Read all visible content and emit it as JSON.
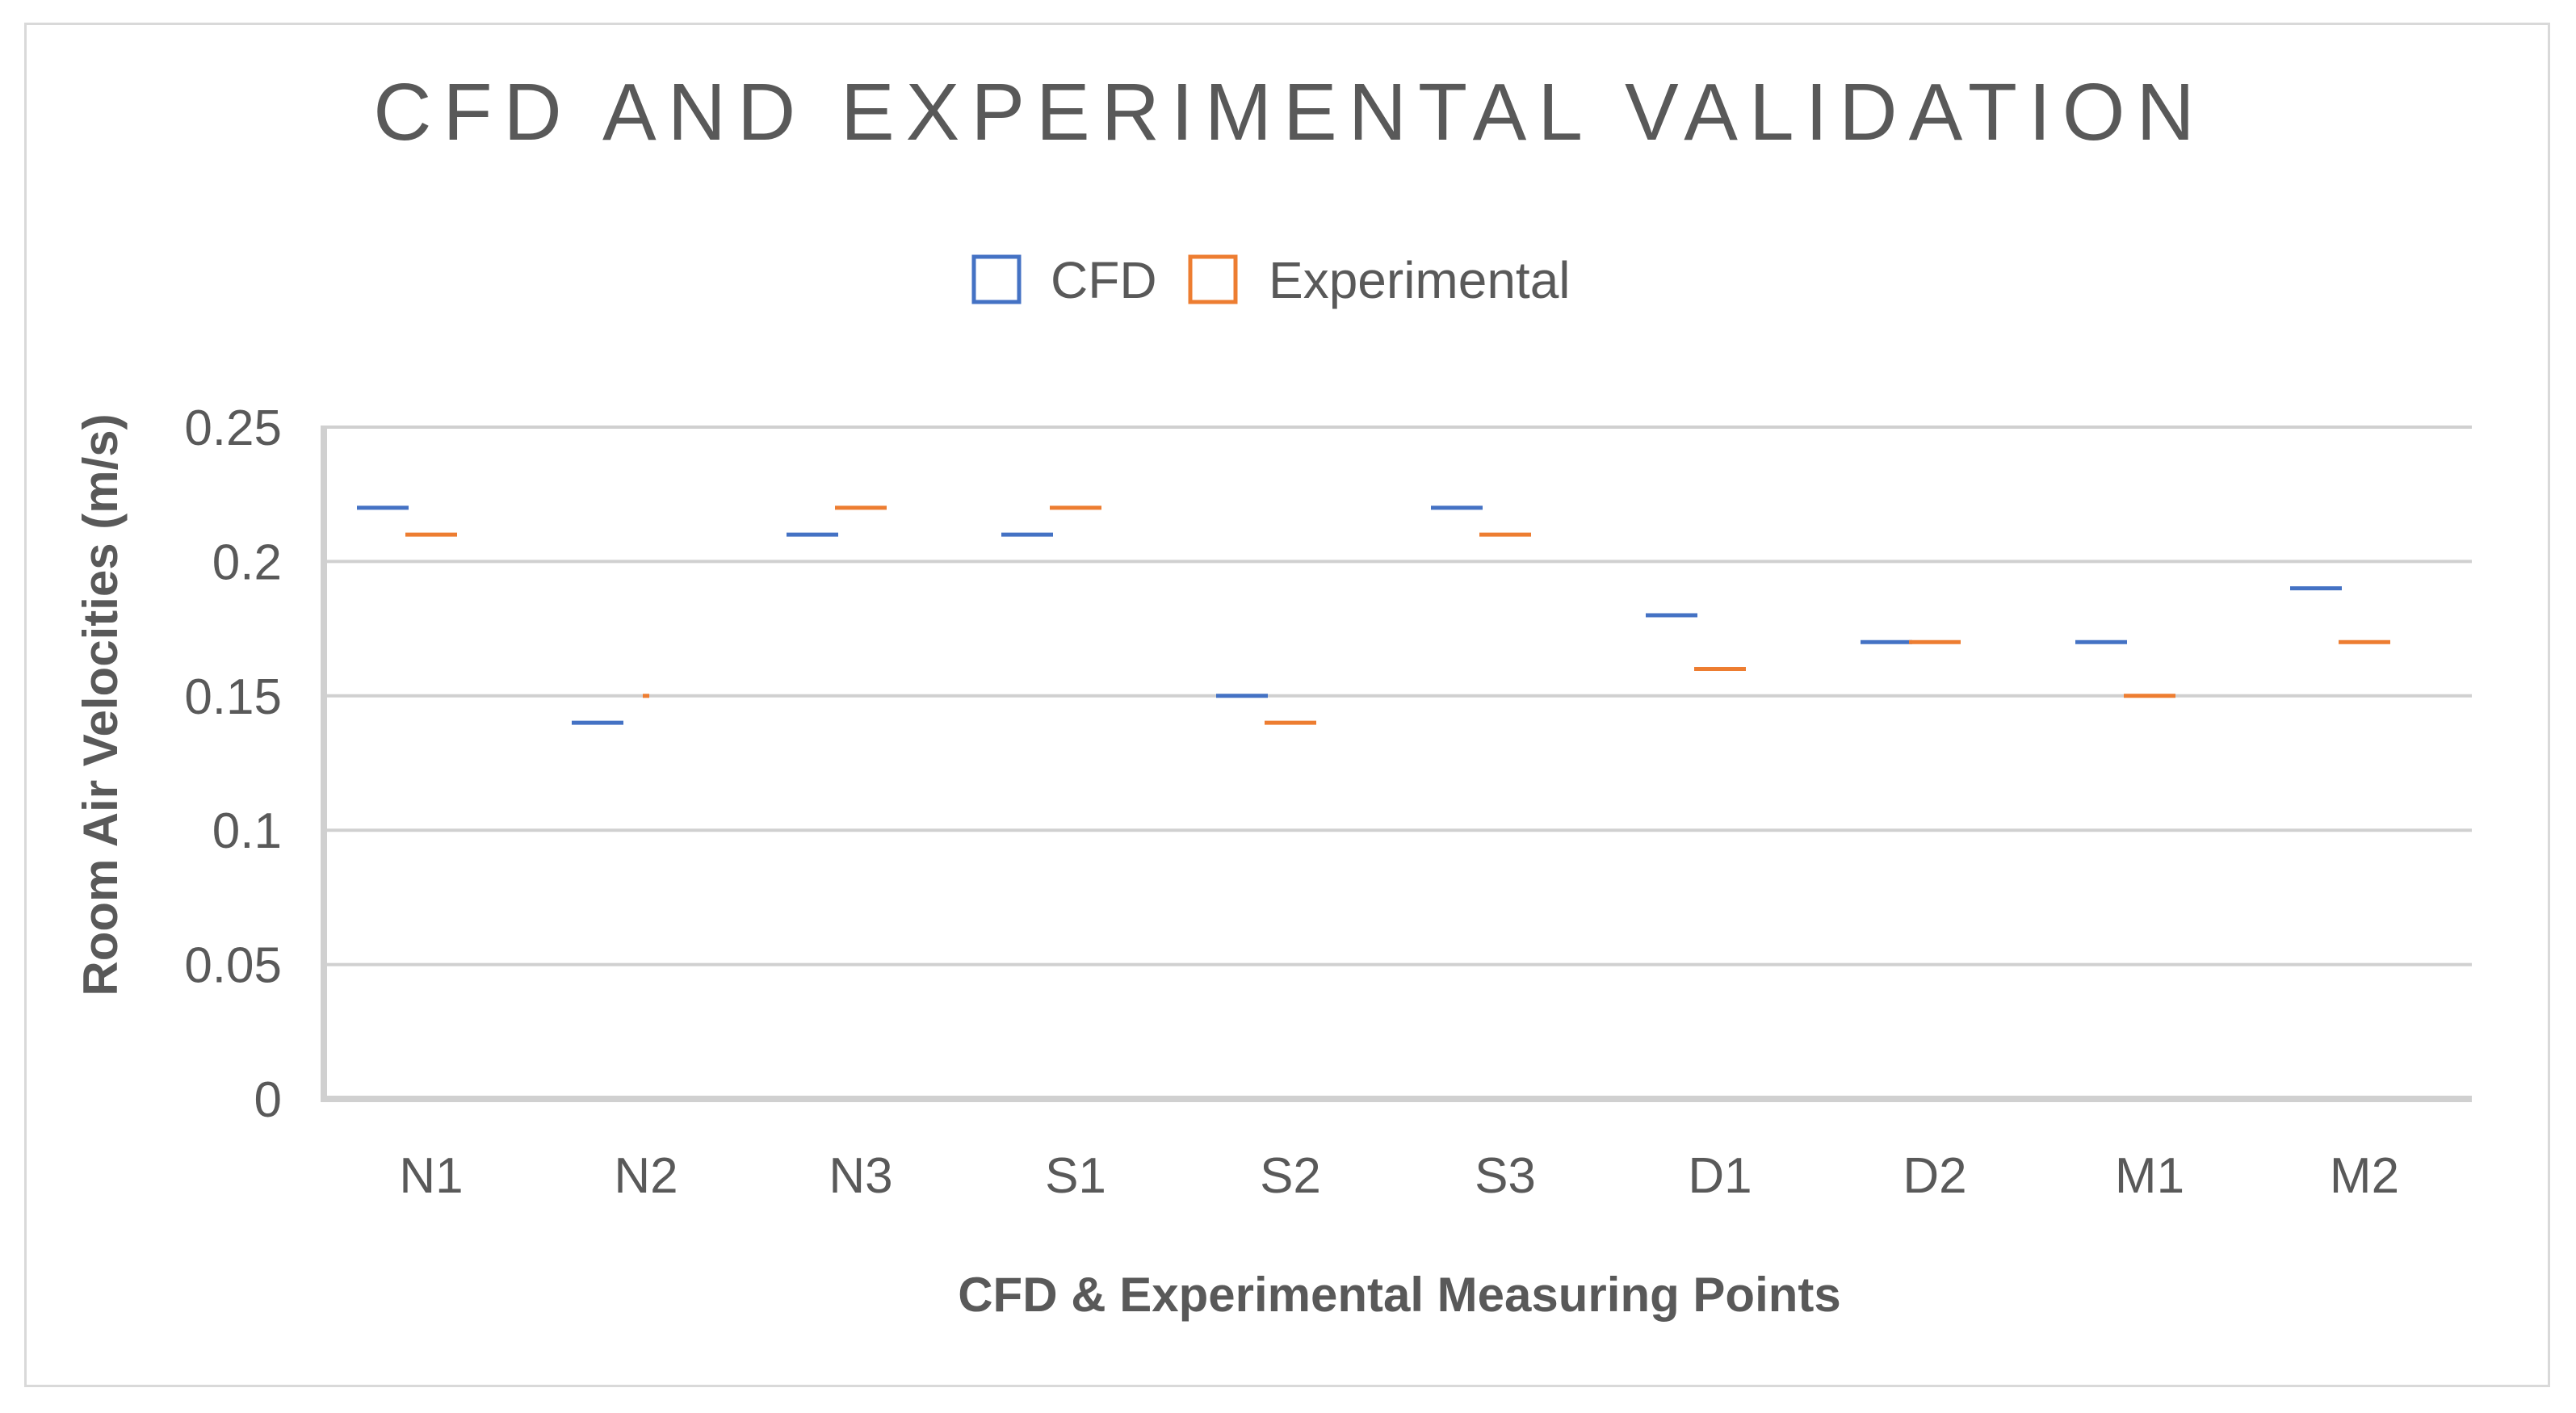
{
  "chart_data": {
    "type": "line",
    "title": "CFD AND EXPERIMENTAL VALIDATION",
    "xlabel": "CFD & Experimental Measuring Points",
    "ylabel": "Room Air Velocities (m/s)",
    "categories": [
      "N1",
      "N2",
      "N3",
      "S1",
      "S2",
      "S3",
      "D1",
      "D2",
      "M1",
      "M2"
    ],
    "ylim": [
      0,
      0.25
    ],
    "yticks": [
      0,
      0.05,
      0.1,
      0.15,
      0.2,
      0.25
    ],
    "ytick_labels": [
      "0",
      "0.05",
      "0.1",
      "0.15",
      "0.2",
      "0.25"
    ],
    "grid": true,
    "legend_position": "top-center",
    "series": [
      {
        "name": "CFD",
        "color": "#4472c4",
        "values": [
          0.22,
          0.14,
          0.21,
          0.21,
          0.15,
          0.22,
          0.18,
          0.17,
          0.17,
          0.19
        ]
      },
      {
        "name": "Experimental",
        "color": "#ed7d31",
        "values": [
          0.21,
          0.15,
          0.22,
          0.22,
          0.14,
          0.21,
          0.16,
          0.17,
          0.15,
          0.17
        ]
      }
    ]
  }
}
